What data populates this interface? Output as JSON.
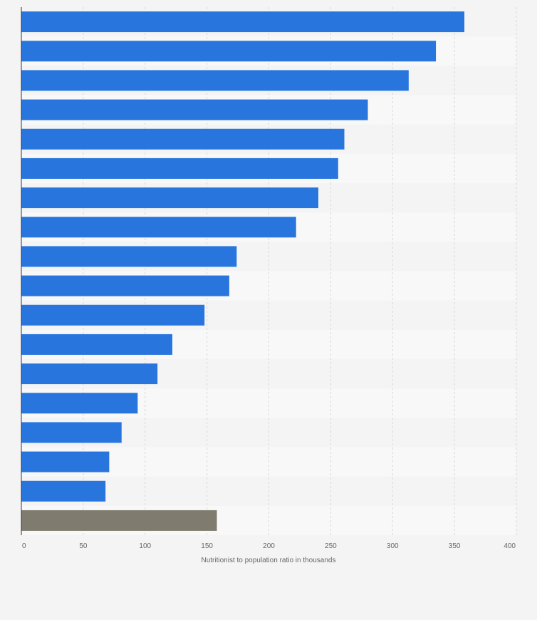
{
  "chart_data": {
    "type": "bar",
    "orientation": "horizontal",
    "xlabel": "Nutritionist to population ratio in thousands",
    "ylabel": "",
    "xlim": [
      0,
      400
    ],
    "xticks": [
      "0",
      "50",
      "100",
      "150",
      "200",
      "250",
      "300",
      "350",
      "400"
    ],
    "grid": true,
    "legend": "none",
    "values": [
      358,
      335,
      313,
      280,
      261,
      256,
      240,
      222,
      174,
      168,
      148,
      122,
      110,
      94,
      81,
      71,
      68,
      158
    ],
    "colors": {
      "bar": "#2876dd",
      "highlight": "#7f7c6f",
      "band_dark": "#f4f4f4",
      "band_light": "#f8f8f8",
      "grid": "#d9d9d9",
      "axis": "#333333"
    },
    "highlight_index": 17
  }
}
